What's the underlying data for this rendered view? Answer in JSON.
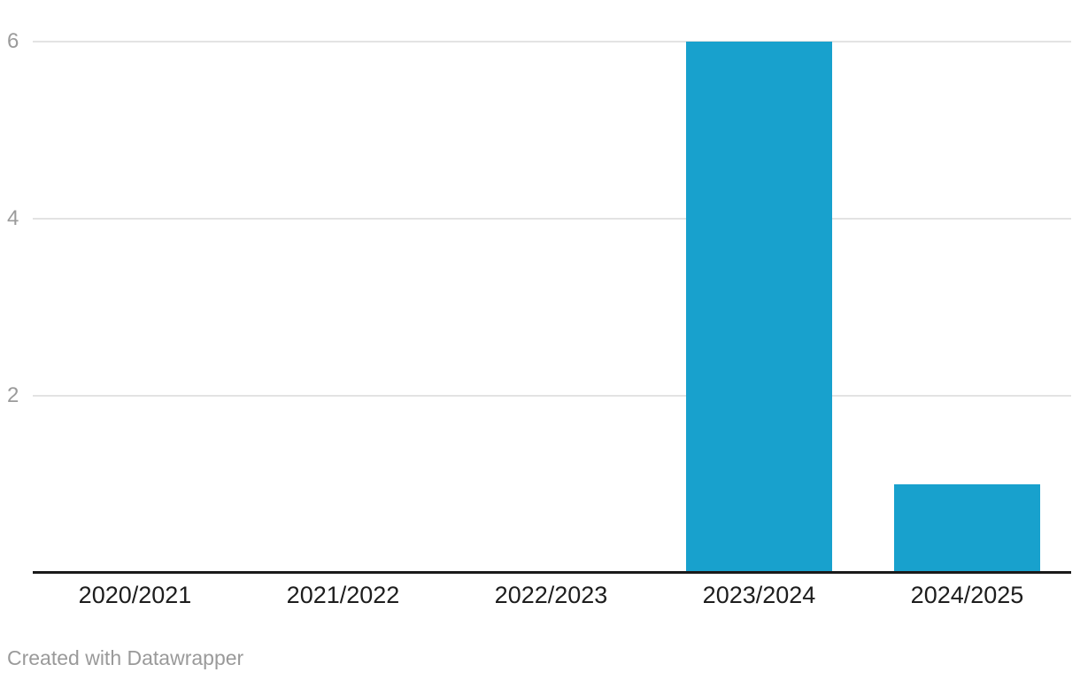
{
  "chart_data": {
    "type": "bar",
    "categories": [
      "2020/2021",
      "2021/2022",
      "2022/2023",
      "2023/2024",
      "2024/2025"
    ],
    "values": [
      0,
      0,
      0,
      6,
      1
    ],
    "title": "",
    "xlabel": "",
    "ylabel": "",
    "ylim": [
      0,
      6
    ],
    "yticks": [
      2,
      4,
      6
    ],
    "grid": true,
    "legend_position": "none",
    "bar_color": "#18a1cd"
  },
  "colors": {
    "background": "#ffffff",
    "bar": "#18a1cd",
    "grid_line": "#e3e3e3",
    "axis_line": "#1a1a1a",
    "y_tick_label": "#9b9b9b",
    "x_tick_label": "#1d1d1d",
    "footer_text": "#9a9a9a"
  },
  "footer": {
    "attribution": "Created with Datawrapper"
  }
}
